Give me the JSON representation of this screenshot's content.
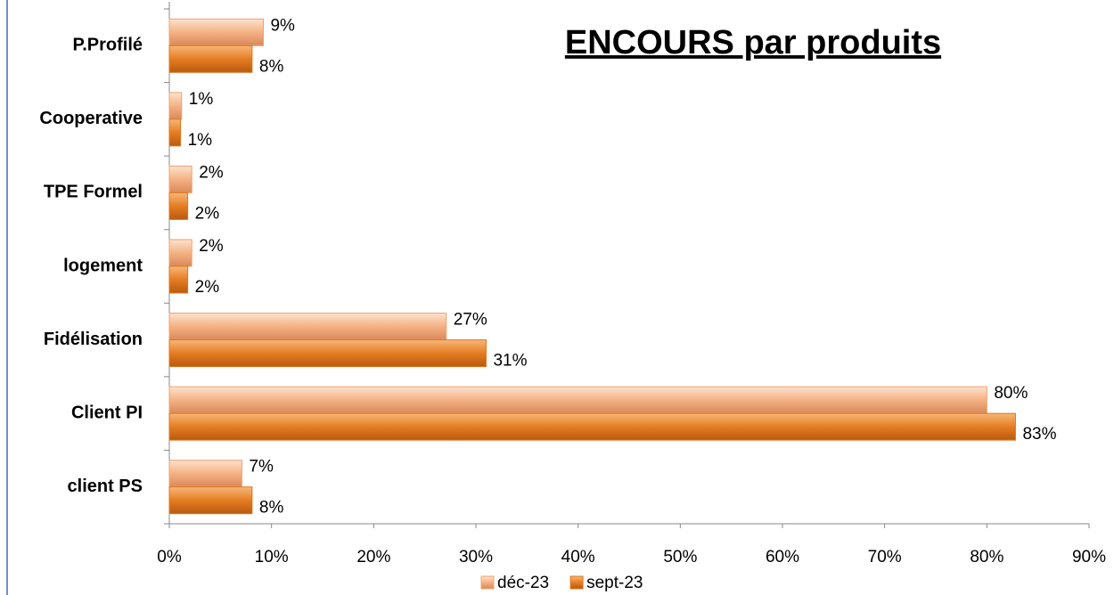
{
  "chart_data": {
    "type": "barh",
    "title": "ENCOURS par produits",
    "categories": [
      "client PS",
      "Client PI",
      "Fidélisation",
      "logement",
      "TPE Formel",
      "Cooperative",
      "P.Profilé"
    ],
    "series": [
      {
        "name": "déc-23",
        "color": "#f2a06e",
        "values": [
          7.1,
          80,
          27.1,
          2.2,
          2.2,
          1.2,
          9.2
        ],
        "value_labels": [
          "7%",
          "80%",
          "27%",
          "2%",
          "2%",
          "1%",
          "9%"
        ]
      },
      {
        "name": "sept-23",
        "color": "#e0761c",
        "values": [
          8.1,
          82.8,
          31,
          1.8,
          1.8,
          1.1,
          8.1
        ],
        "value_labels": [
          "8%",
          "83%",
          "31%",
          "2%",
          "2%",
          "1%",
          "8%"
        ]
      }
    ],
    "xlim": [
      0,
      90
    ],
    "xticks": [
      {
        "value": 0,
        "label": "0%"
      },
      {
        "value": 10,
        "label": "10%"
      },
      {
        "value": 20,
        "label": "20%"
      },
      {
        "value": 30,
        "label": "30%"
      },
      {
        "value": 40,
        "label": "40%"
      },
      {
        "value": 50,
        "label": "50%"
      },
      {
        "value": 60,
        "label": "60%"
      },
      {
        "value": 70,
        "label": "70%"
      },
      {
        "value": 80,
        "label": "80%"
      },
      {
        "value": 90,
        "label": "90%"
      }
    ],
    "grid": false,
    "legend": "bottom"
  }
}
